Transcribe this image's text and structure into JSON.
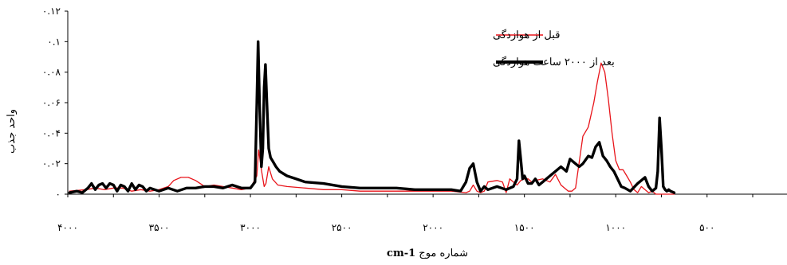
{
  "chart_data": {
    "type": "line",
    "title": "",
    "xlabel": "شماره موج",
    "xlabel_unit": "cm-1",
    "ylabel": "واحد جذب",
    "xlim": [
      4000,
      0
    ],
    "ylim": [
      0,
      0.12
    ],
    "x_ticks": [
      {
        "value": 4000,
        "label": "۴۰۰۰"
      },
      {
        "value": 3500,
        "label": "۳۵۰۰"
      },
      {
        "value": 3000,
        "label": "۳۰۰۰"
      },
      {
        "value": 2500,
        "label": "۲۵۰۰"
      },
      {
        "value": 2000,
        "label": "۲۰۰۰"
      },
      {
        "value": 1500,
        "label": "۱۵۰۰"
      },
      {
        "value": 1000,
        "label": "۱۰۰۰"
      },
      {
        "value": 500,
        "label": "۵۰۰"
      }
    ],
    "y_ticks": [
      {
        "value": 0,
        "label": "۰"
      },
      {
        "value": 0.02,
        "label": "۰.۰۲"
      },
      {
        "value": 0.04,
        "label": "۰.۰۴"
      },
      {
        "value": 0.06,
        "label": "۰.۰۶"
      },
      {
        "value": 0.08,
        "label": "۰.۰۸"
      },
      {
        "value": 0.1,
        "label": "۰.۱"
      },
      {
        "value": 0.12,
        "label": "۰.۱۲"
      }
    ],
    "grid": false,
    "legend_position": "top-right",
    "series": [
      {
        "name": "قبل از هوازدگی",
        "color": "#e8141a",
        "x": [
          3990,
          3900,
          3850,
          3800,
          3750,
          3700,
          3650,
          3600,
          3550,
          3500,
          3450,
          3420,
          3380,
          3340,
          3300,
          3250,
          3200,
          3150,
          3100,
          3050,
          3000,
          2965,
          2955,
          2940,
          2925,
          2915,
          2900,
          2880,
          2850,
          2800,
          2700,
          2600,
          2500,
          2400,
          2300,
          2200,
          2100,
          2000,
          1900,
          1820,
          1800,
          1780,
          1760,
          1740,
          1720,
          1700,
          1650,
          1620,
          1600,
          1580,
          1560,
          1540,
          1520,
          1500,
          1480,
          1460,
          1440,
          1400,
          1360,
          1330,
          1300,
          1260,
          1240,
          1220,
          1180,
          1150,
          1120,
          1100,
          1080,
          1060,
          1040,
          1020,
          1000,
          980,
          960,
          940,
          920,
          900,
          880,
          860,
          840,
          820,
          800,
          780,
          760,
          740,
          720,
          700,
          680
        ],
        "y": [
          0.002,
          0.003,
          0.004,
          0.003,
          0.004,
          0.004,
          0.002,
          0.003,
          0.002,
          0.003,
          0.005,
          0.009,
          0.011,
          0.011,
          0.009,
          0.005,
          0.006,
          0.005,
          0.004,
          0.003,
          0.004,
          0.012,
          0.029,
          0.016,
          0.005,
          0.007,
          0.018,
          0.01,
          0.006,
          0.005,
          0.004,
          0.003,
          0.003,
          0.002,
          0.002,
          0.002,
          0.002,
          0.002,
          0.002,
          0.001,
          0.002,
          0.006,
          0.002,
          0.001,
          0.002,
          0.008,
          0.009,
          0.008,
          0.001,
          0.01,
          0.008,
          0.006,
          0.009,
          0.01,
          0.01,
          0.008,
          0.009,
          0.01,
          0.008,
          0.013,
          0.006,
          0.002,
          0.002,
          0.004,
          0.038,
          0.044,
          0.06,
          0.074,
          0.086,
          0.08,
          0.062,
          0.04,
          0.022,
          0.016,
          0.016,
          0.012,
          0.008,
          0.003,
          0.001,
          0.005,
          0.003,
          0.001,
          0.002,
          0.0,
          0.0,
          0.0,
          0.0,
          0.0,
          0.0
        ]
      },
      {
        "name": "بعد از ۲۰۰۰ ساعت هوازدگی",
        "color": "#000000",
        "x": [
          3990,
          3950,
          3920,
          3890,
          3870,
          3850,
          3830,
          3810,
          3790,
          3770,
          3750,
          3730,
          3710,
          3690,
          3670,
          3650,
          3630,
          3610,
          3590,
          3570,
          3550,
          3500,
          3450,
          3400,
          3350,
          3300,
          3250,
          3200,
          3150,
          3100,
          3050,
          3000,
          2975,
          2965,
          2958,
          2950,
          2940,
          2932,
          2925,
          2918,
          2910,
          2900,
          2890,
          2880,
          2860,
          2840,
          2800,
          2750,
          2700,
          2600,
          2500,
          2400,
          2300,
          2200,
          2100,
          2000,
          1900,
          1850,
          1820,
          1800,
          1780,
          1760,
          1740,
          1720,
          1700,
          1650,
          1600,
          1560,
          1540,
          1530,
          1520,
          1510,
          1500,
          1480,
          1460,
          1440,
          1420,
          1400,
          1360,
          1330,
          1300,
          1270,
          1250,
          1230,
          1200,
          1180,
          1150,
          1130,
          1110,
          1090,
          1070,
          1050,
          1030,
          1010,
          990,
          970,
          950,
          920,
          880,
          840,
          820,
          800,
          780,
          770,
          760,
          750,
          740,
          730,
          720,
          710,
          700,
          680
        ],
        "y": [
          0.001,
          0.002,
          0.001,
          0.004,
          0.007,
          0.003,
          0.006,
          0.007,
          0.004,
          0.007,
          0.006,
          0.002,
          0.006,
          0.005,
          0.002,
          0.007,
          0.003,
          0.006,
          0.005,
          0.002,
          0.004,
          0.002,
          0.004,
          0.002,
          0.004,
          0.004,
          0.005,
          0.005,
          0.004,
          0.006,
          0.004,
          0.004,
          0.008,
          0.06,
          0.1,
          0.06,
          0.018,
          0.03,
          0.07,
          0.085,
          0.06,
          0.03,
          0.024,
          0.022,
          0.018,
          0.015,
          0.012,
          0.01,
          0.008,
          0.007,
          0.005,
          0.004,
          0.004,
          0.004,
          0.003,
          0.003,
          0.003,
          0.002,
          0.008,
          0.017,
          0.02,
          0.008,
          0.002,
          0.005,
          0.003,
          0.005,
          0.003,
          0.005,
          0.01,
          0.035,
          0.023,
          0.01,
          0.012,
          0.007,
          0.007,
          0.01,
          0.006,
          0.008,
          0.012,
          0.015,
          0.018,
          0.015,
          0.023,
          0.021,
          0.018,
          0.02,
          0.025,
          0.024,
          0.031,
          0.034,
          0.025,
          0.022,
          0.018,
          0.015,
          0.01,
          0.005,
          0.004,
          0.002,
          0.007,
          0.011,
          0.005,
          0.002,
          0.004,
          0.015,
          0.05,
          0.03,
          0.005,
          0.003,
          0.002,
          0.003,
          0.002,
          0.001
        ]
      }
    ]
  }
}
